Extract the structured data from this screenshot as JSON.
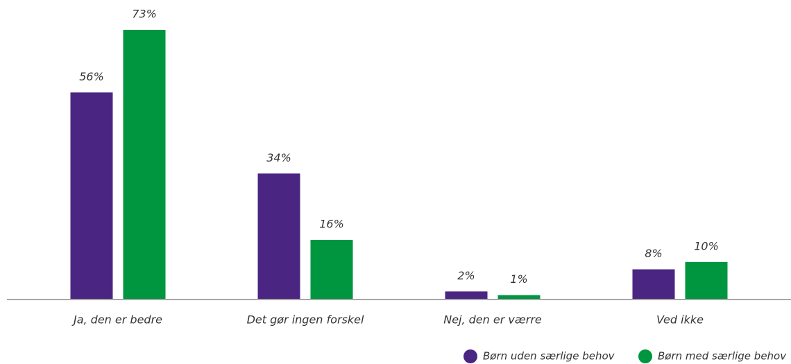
{
  "chart_data": {
    "type": "bar",
    "categories": [
      "Ja, den er bedre",
      "Det gør ingen forskel",
      "Nej, den er værre",
      "Ved ikke"
    ],
    "series": [
      {
        "name": "Børn uden særlige behov",
        "color": "#4b2582",
        "values": [
          56,
          34,
          2,
          8
        ],
        "value_labels": [
          "56%",
          "34%",
          "2%",
          "8%"
        ]
      },
      {
        "name": "Børn med særlige behov",
        "color": "#00963f",
        "values": [
          73,
          16,
          1,
          10
        ],
        "value_labels": [
          "73%",
          "16%",
          "1%",
          "10%"
        ]
      }
    ],
    "legend": "bottom-right"
  }
}
